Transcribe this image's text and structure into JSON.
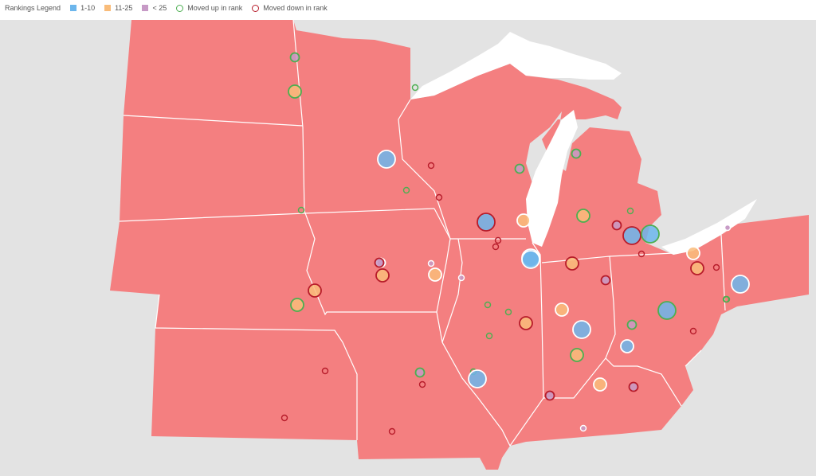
{
  "legend": {
    "title": "Rankings Legend",
    "items": [
      {
        "label": "1-10",
        "kind": "fill",
        "color": "#6cb6ec"
      },
      {
        "label": "11-25",
        "kind": "fill",
        "color": "#f9bc7a"
      },
      {
        "label": "< 25",
        "kind": "fill",
        "color": "#c79ac6"
      },
      {
        "label": "Moved up in rank",
        "kind": "ring",
        "color": "#4caf50"
      },
      {
        "label": "Moved down in rank",
        "kind": "ring",
        "color": "#b71c2a"
      }
    ]
  },
  "colors": {
    "region": "#f47f80",
    "background_land": "#e3e3e3",
    "water": "#ffffff",
    "border": "#ffffff"
  },
  "markers": [
    {
      "tier": "<25",
      "move": "up",
      "size": "s"
    },
    {
      "tier": "11-25",
      "move": "up",
      "size": "m"
    },
    {
      "tier": "<25",
      "move": "up",
      "size": "xs"
    },
    {
      "tier": "1-10",
      "move": "none",
      "size": "l"
    },
    {
      "tier": "<25",
      "move": "down",
      "size": "xs"
    },
    {
      "tier": "<25",
      "move": "up",
      "size": "xs"
    },
    {
      "tier": "<25",
      "move": "down",
      "size": "xs"
    },
    {
      "tier": "<25",
      "move": "up",
      "size": "xs"
    },
    {
      "tier": "<25",
      "move": "up",
      "size": "s"
    },
    {
      "tier": "1-10",
      "move": "down",
      "size": "l"
    },
    {
      "tier": "11-25",
      "move": "none",
      "size": "m"
    },
    {
      "tier": "<25",
      "move": "down",
      "size": "xs"
    },
    {
      "tier": "<25",
      "move": "down",
      "size": "xs"
    },
    {
      "tier": "1-10",
      "move": "none",
      "size": "l"
    },
    {
      "tier": "<25",
      "move": "up",
      "size": "s"
    },
    {
      "tier": "11-25",
      "move": "up",
      "size": "m"
    },
    {
      "tier": "<25",
      "move": "up",
      "size": "xs"
    },
    {
      "tier": "<25",
      "move": "down",
      "size": "s"
    },
    {
      "tier": "1-10",
      "move": "down",
      "size": "l"
    },
    {
      "tier": "1-10",
      "move": "up",
      "size": "l"
    },
    {
      "tier": "<25",
      "move": "down",
      "size": "xs"
    },
    {
      "tier": "11-25",
      "move": "none",
      "size": "m"
    },
    {
      "tier": "11-25",
      "move": "down",
      "size": "m"
    },
    {
      "tier": "<25",
      "move": "down",
      "size": "xs"
    },
    {
      "tier": "<25",
      "move": "none",
      "size": "xs"
    },
    {
      "tier": "1-10",
      "move": "none",
      "size": "l"
    },
    {
      "tier": "<25",
      "move": "none",
      "size": "s"
    },
    {
      "tier": "11-25",
      "move": "down",
      "size": "m"
    },
    {
      "tier": "<25",
      "move": "none",
      "size": "xs"
    },
    {
      "tier": "11-25",
      "move": "none",
      "size": "m"
    },
    {
      "tier": "<25",
      "move": "none",
      "size": "xs"
    },
    {
      "tier": "11-25",
      "move": "down",
      "size": "m"
    },
    {
      "tier": "11-25",
      "move": "up",
      "size": "m"
    },
    {
      "tier": "11-25",
      "move": "down",
      "size": "m"
    },
    {
      "tier": "<25",
      "move": "down",
      "size": "s"
    },
    {
      "tier": "1-10",
      "move": "none",
      "size": "l"
    },
    {
      "tier": "<25",
      "move": "down",
      "size": "s"
    },
    {
      "tier": "<25",
      "move": "up",
      "size": "xs"
    },
    {
      "tier": "<25",
      "move": "up",
      "size": "xs"
    },
    {
      "tier": "11-25",
      "move": "down",
      "size": "m"
    },
    {
      "tier": "<25",
      "move": "up",
      "size": "xs"
    },
    {
      "tier": "<25",
      "move": "up",
      "size": "xs"
    },
    {
      "tier": "1-10",
      "move": "none",
      "size": "l"
    },
    {
      "tier": "<25",
      "move": "up",
      "size": "s"
    },
    {
      "tier": "1-10",
      "move": "up",
      "size": "l"
    },
    {
      "tier": "11-25",
      "move": "up",
      "size": "m"
    },
    {
      "tier": "<25",
      "move": "up",
      "size": "xs"
    },
    {
      "tier": "<25",
      "move": "down",
      "size": "xs"
    },
    {
      "tier": "1-10",
      "move": "none",
      "size": "m"
    },
    {
      "tier": "11-25",
      "move": "none",
      "size": "m"
    },
    {
      "tier": "<25",
      "move": "up",
      "size": "s"
    },
    {
      "tier": "<25",
      "move": "down",
      "size": "xs"
    },
    {
      "tier": "1-10",
      "move": "none",
      "size": "l"
    },
    {
      "tier": "<25",
      "move": "down",
      "size": "s"
    },
    {
      "tier": "11-25",
      "move": "none",
      "size": "m"
    },
    {
      "tier": "<25",
      "move": "down",
      "size": "s"
    },
    {
      "tier": "<25",
      "move": "none",
      "size": "xs"
    },
    {
      "tier": "<25",
      "move": "down",
      "size": "xs"
    },
    {
      "tier": "<25",
      "move": "down",
      "size": "xs"
    },
    {
      "tier": "<25",
      "move": "down",
      "size": "xs"
    },
    {
      "tier": "<25",
      "move": "up",
      "size": "xs"
    },
    {
      "tier": "<25",
      "move": "none",
      "size": "xs"
    }
  ]
}
